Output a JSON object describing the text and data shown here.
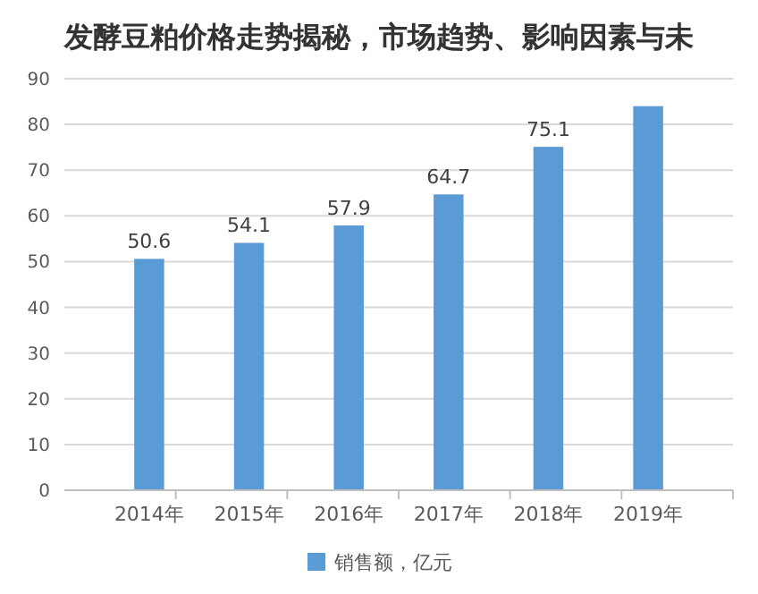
{
  "chart_data": {
    "type": "bar",
    "title": "发酵豆粕价格走势揭秘，市场趋势、影响因素与未",
    "categories": [
      "2014年",
      "2015年",
      "2016年",
      "2017年",
      "2018年",
      "2019年"
    ],
    "series": [
      {
        "name": "销售额，亿元",
        "color": "#5b9bd5",
        "values": [
          50.6,
          54.1,
          57.9,
          64.7,
          75.1,
          84
        ],
        "value_labels": [
          "50.6",
          "54.1",
          "57.9",
          "64.7",
          "75.1",
          null
        ]
      }
    ],
    "ylim": [
      0,
      90
    ],
    "yticks": [
      0,
      10,
      20,
      30,
      40,
      50,
      60,
      70,
      80,
      90
    ],
    "grid": "y",
    "legend": "bottom"
  }
}
